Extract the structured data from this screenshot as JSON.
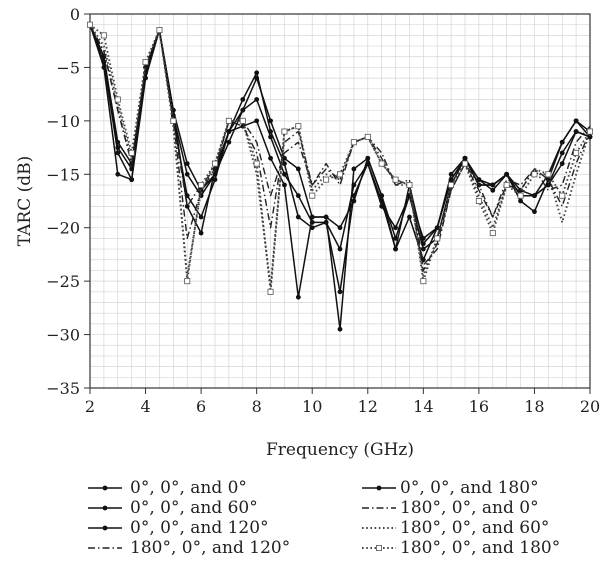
{
  "chart_data": {
    "type": "line",
    "xlabel": "Frequency (GHz)",
    "ylabel": "TARC (dB)",
    "xlim": [
      2,
      20
    ],
    "ylim": [
      -35,
      0
    ],
    "xticks": [
      2,
      4,
      6,
      8,
      10,
      12,
      14,
      16,
      18,
      20
    ],
    "yticks": [
      0,
      -5,
      -10,
      -15,
      -20,
      -25,
      -30,
      -35
    ],
    "grid": true,
    "legend_position": "bottom",
    "x": [
      2,
      2.5,
      3,
      3.5,
      4,
      4.5,
      5,
      5.5,
      6,
      6.5,
      7,
      7.5,
      8,
      8.5,
      9,
      9.5,
      10,
      10.5,
      11,
      11.5,
      12,
      12.5,
      13,
      13.5,
      14,
      14.5,
      15,
      15.5,
      16,
      16.5,
      17,
      17.5,
      18,
      18.5,
      19,
      19.5,
      20
    ],
    "series": [
      {
        "name": "0°, 0°, and 0°",
        "style": "solid",
        "marker": "dot",
        "values": [
          -1,
          -4,
          -12,
          -14,
          -5,
          -1.5,
          -9,
          -14,
          -16.5,
          -15,
          -12,
          -9,
          -6,
          -10,
          -13.5,
          -14.5,
          -19,
          -19,
          -20,
          -17.5,
          -13.5,
          -17,
          -21,
          -17,
          -21,
          -20,
          -15.5,
          -13.5,
          -15.5,
          -16,
          -15,
          -16.5,
          -17,
          -16,
          -14,
          -11,
          -11.5
        ]
      },
      {
        "name": "0°, 0°, and 60°",
        "style": "solid",
        "marker": "dot",
        "values": [
          -1,
          -4.5,
          -13,
          -15.5,
          -5.5,
          -1.5,
          -9.5,
          -15,
          -17,
          -15,
          -11,
          -8,
          -5.5,
          -11,
          -14,
          -19,
          -20,
          -19.5,
          -22,
          -16,
          -14,
          -17.5,
          -22,
          -16,
          -21.5,
          -20,
          -15,
          -13.5,
          -15.5,
          -16.5,
          -15,
          -17.5,
          -18.5,
          -15.5,
          -12,
          -10,
          -11.5
        ]
      },
      {
        "name": "0°, 0°, and 120°",
        "style": "solid",
        "marker": "dot",
        "values": [
          -1,
          -4,
          -12.5,
          -14.5,
          -5,
          -1.5,
          -10,
          -17,
          -19,
          -15.5,
          -11,
          -9,
          -8,
          -11.5,
          -15,
          -17,
          -19.5,
          -19.5,
          -26,
          -17,
          -14,
          -18,
          -20,
          -17,
          -22,
          -21,
          -16,
          -13.5,
          -16,
          -16,
          -15,
          -17,
          -17,
          -16,
          -13,
          -11,
          -11.5
        ]
      },
      {
        "name": "0°, 0°, and 180°",
        "style": "solid",
        "marker": "dot",
        "values": [
          -1,
          -5,
          -15,
          -15.5,
          -6,
          -1.5,
          -9,
          -18,
          -20.5,
          -14.5,
          -11,
          -10.5,
          -10,
          -13.5,
          -16,
          -26.5,
          -19,
          -19,
          -29.5,
          -14.5,
          -13.5,
          -17,
          -22,
          -19,
          -23,
          -20,
          -15.5,
          -13.5,
          -16,
          -16,
          -15,
          -17,
          -17,
          -15,
          -12,
          -10,
          -11
        ]
      },
      {
        "name": "180°, 0°, and 0°",
        "style": "dashdot",
        "marker": "none",
        "values": [
          -1,
          -3.5,
          -9,
          -14,
          -5,
          -1.5,
          -10,
          -18,
          -16,
          -14.5,
          -10,
          -10,
          -12,
          -17,
          -13,
          -12,
          -16,
          -14,
          -16,
          -12,
          -11.5,
          -13,
          -16,
          -15.5,
          -23.5,
          -22,
          -16.5,
          -14,
          -16,
          -19,
          -15.5,
          -16,
          -14.5,
          -16.5,
          -16,
          -12,
          -10.5
        ]
      },
      {
        "name": "180°, 0°, and 60°",
        "style": "dotted",
        "marker": "none",
        "values": [
          -1,
          -3,
          -8.5,
          -13.5,
          -4.5,
          -1.5,
          -10.5,
          -24.5,
          -16.5,
          -14,
          -10,
          -10,
          -15,
          -25.5,
          -11,
          -10.5,
          -16.5,
          -15,
          -15.5,
          -12,
          -11.5,
          -14,
          -15.5,
          -16,
          -24.5,
          -21,
          -16,
          -14,
          -17,
          -20,
          -16,
          -16.5,
          -14.5,
          -15,
          -19.5,
          -15,
          -11
        ]
      },
      {
        "name": "180°, 0°, and 120°",
        "style": "dashdot",
        "marker": "none",
        "values": [
          -1,
          -3.5,
          -9,
          -14,
          -5,
          -1.5,
          -10,
          -21,
          -16.5,
          -14.5,
          -10,
          -10.5,
          -13,
          -20,
          -12,
          -11,
          -16,
          -14.5,
          -15.5,
          -12,
          -11.5,
          -13.5,
          -16,
          -16,
          -24,
          -21.5,
          -16.5,
          -14,
          -16.5,
          -19,
          -16,
          -16.5,
          -14.5,
          -15.5,
          -18,
          -14,
          -11
        ]
      },
      {
        "name": "180°, 0°, and 180°",
        "style": "dotted",
        "marker": "square",
        "values": [
          -1,
          -2,
          -8,
          -13,
          -4.5,
          -1.5,
          -10,
          -25,
          -16,
          -14,
          -10,
          -10,
          -14,
          -26,
          -11,
          -10.5,
          -17,
          -15.5,
          -15,
          -12,
          -11.5,
          -14,
          -15.5,
          -16,
          -25,
          -21,
          -16,
          -14,
          -17.5,
          -20.5,
          -16,
          -17,
          -15,
          -15,
          -17,
          -13,
          -11
        ]
      }
    ]
  }
}
